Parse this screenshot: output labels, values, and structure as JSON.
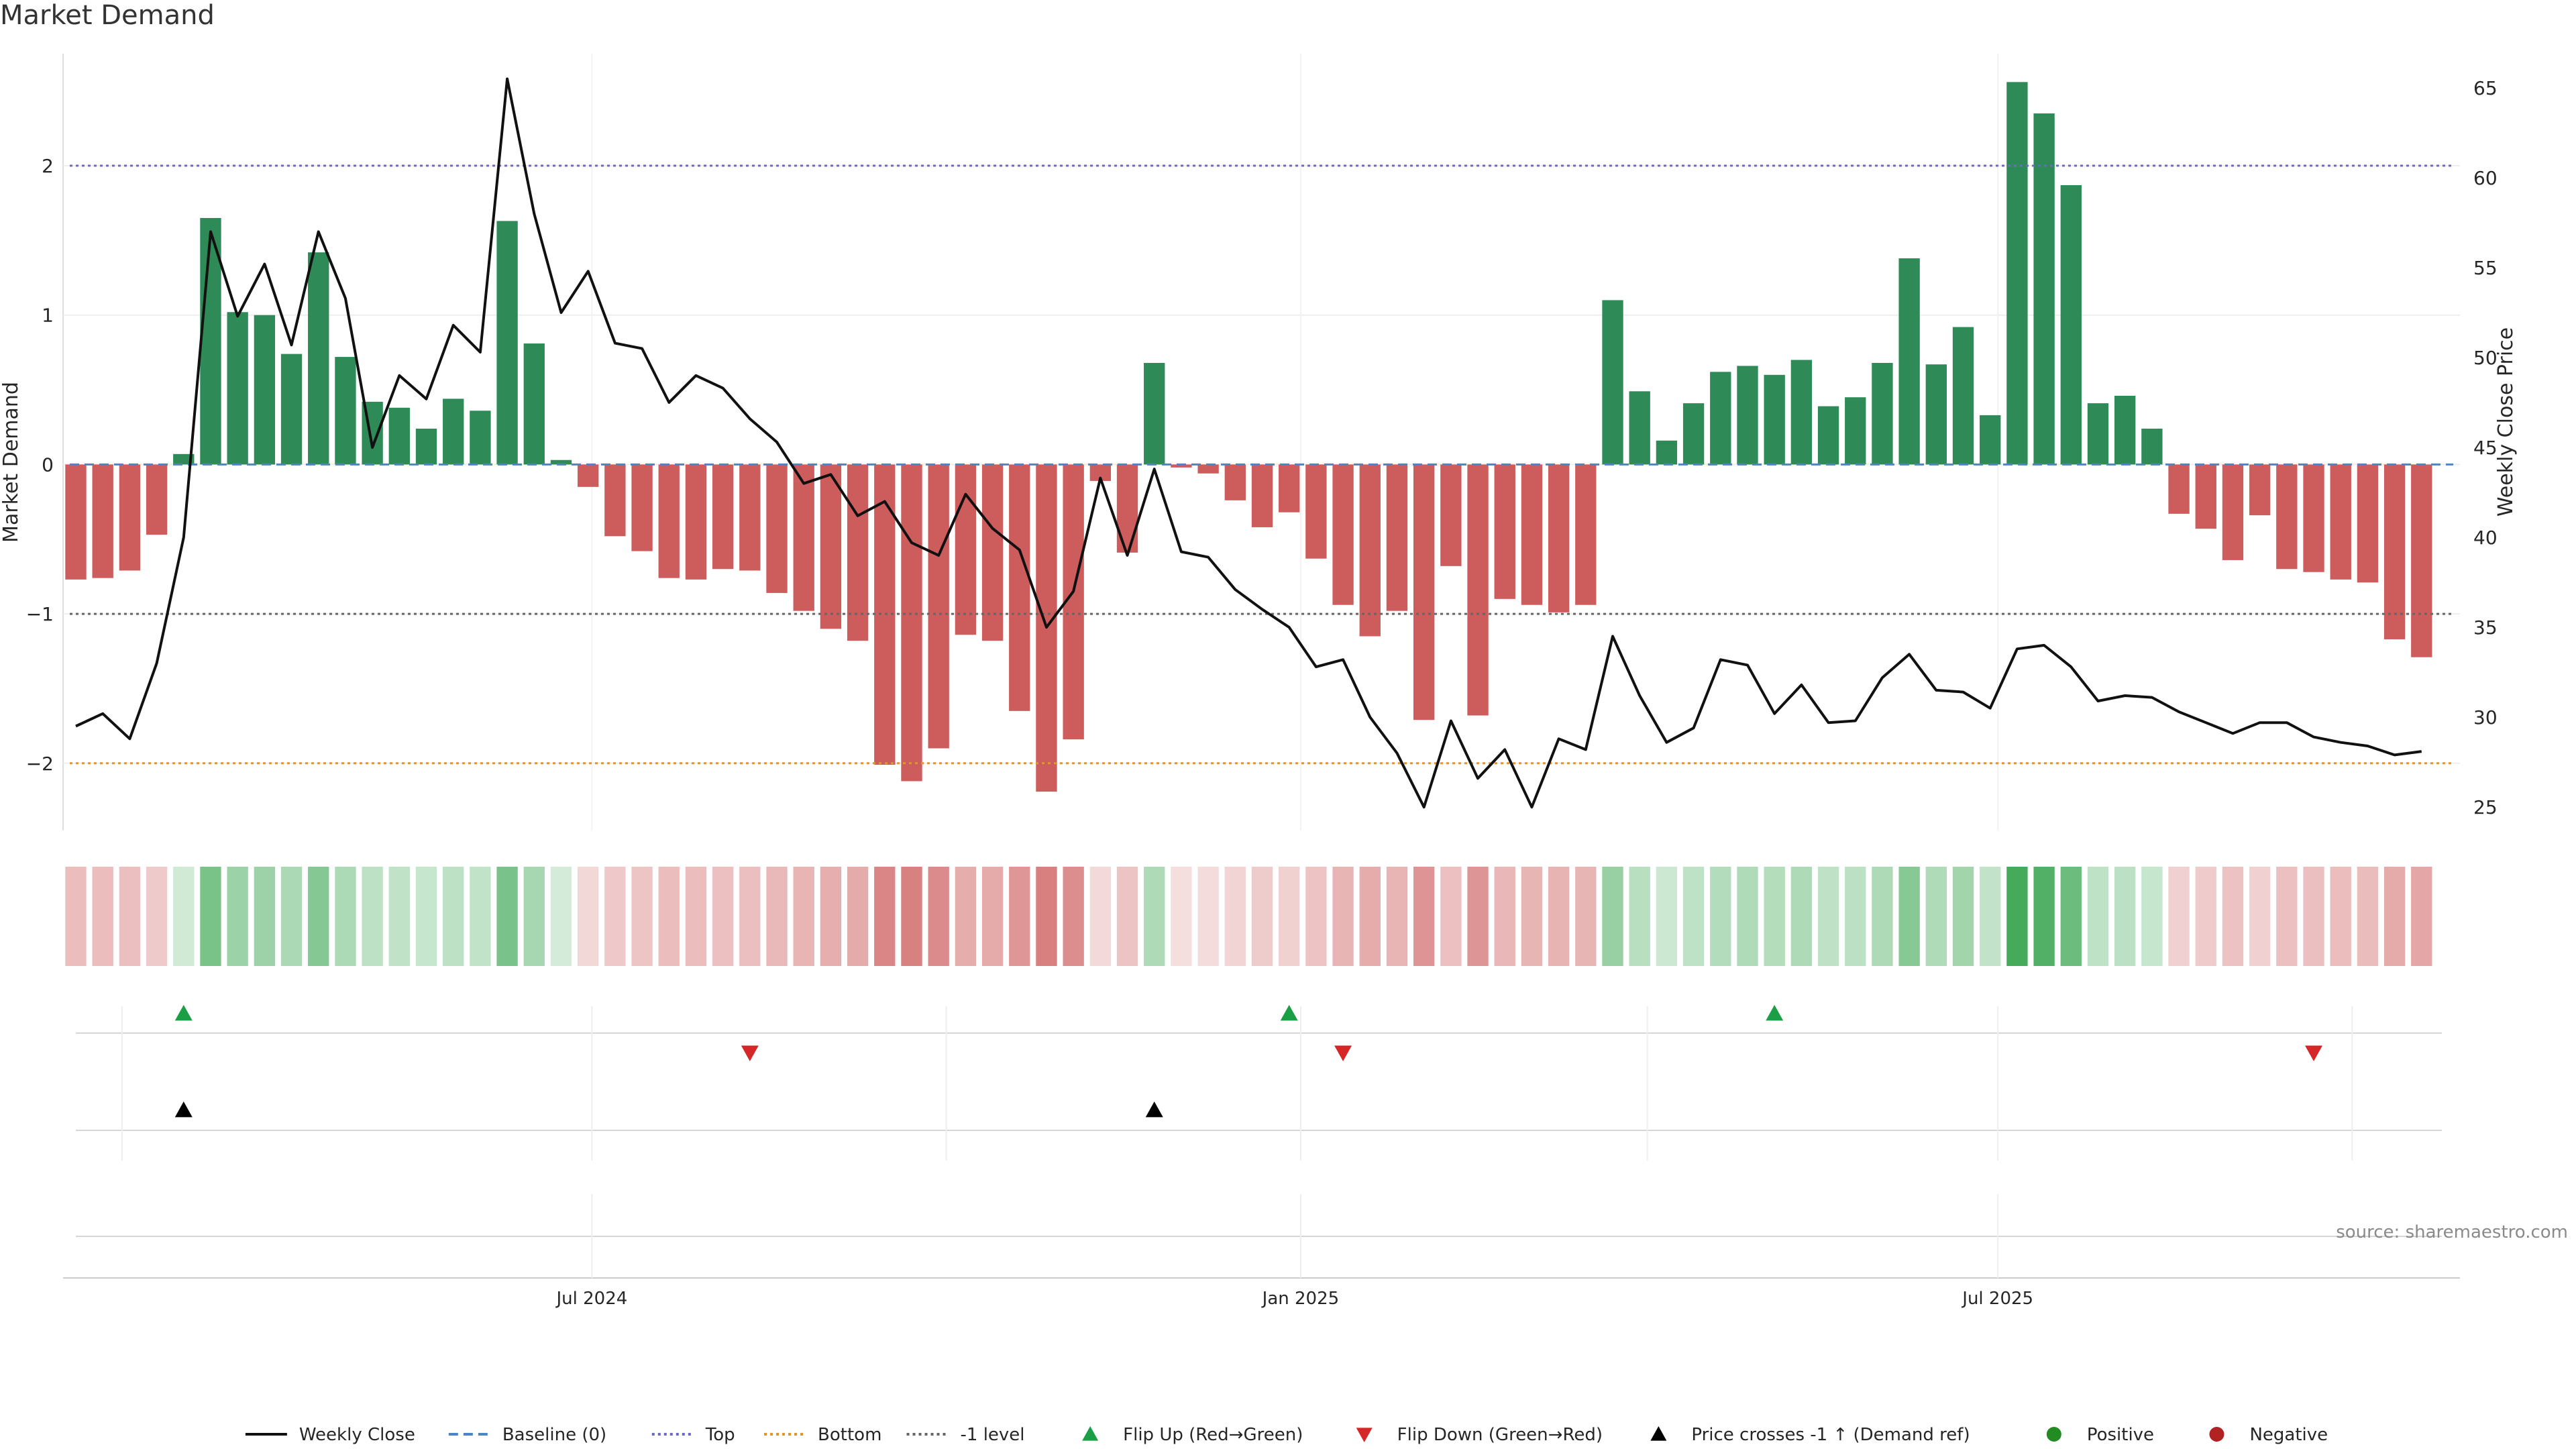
{
  "chart_data": {
    "type": "bar",
    "title": "Market Demand",
    "ylabel": "Market Demand",
    "y2label": "Weekly Close Price",
    "source": "source: sharemaestro.com",
    "ylim": [
      -2.45,
      2.75
    ],
    "y2lim": [
      23.7,
      66.9
    ],
    "yticks": [
      "2",
      "1",
      "0",
      "−1",
      "−2"
    ],
    "yticks_values": [
      2,
      1,
      0,
      -1,
      -2
    ],
    "y2ticks": [
      "65",
      "60",
      "55",
      "50",
      "45",
      "40",
      "35",
      "30",
      "25"
    ],
    "y2ticks_values": [
      65,
      60,
      55,
      50,
      45,
      40,
      35,
      30,
      25
    ],
    "xticks": [
      "Jul 2024",
      "Jan 2025",
      "Jul 2025"
    ],
    "xticks_dates": [
      "2024-07-01",
      "2025-01-01",
      "2025-07-01"
    ],
    "reference_lines": [
      {
        "name": "Top",
        "value": 2.0,
        "color": "#6b6bc6",
        "style": "dotted"
      },
      {
        "name": "-1 level",
        "value": -1.0,
        "color": "#666666",
        "style": "dotted"
      },
      {
        "name": "Bottom",
        "value": -2.0,
        "color": "#e0962f",
        "style": "dotted"
      },
      {
        "name": "Baseline (0)",
        "value": 0.0,
        "color": "#4c84c4",
        "style": "dashed"
      }
    ],
    "dates": [
      "2024-02-18",
      "2024-02-25",
      "2024-03-03",
      "2024-03-10",
      "2024-03-17",
      "2024-03-24",
      "2024-03-31",
      "2024-04-07",
      "2024-04-14",
      "2024-04-21",
      "2024-04-28",
      "2024-05-05",
      "2024-05-12",
      "2024-05-19",
      "2024-05-26",
      "2024-06-02",
      "2024-06-09",
      "2024-06-16",
      "2024-06-23",
      "2024-06-30",
      "2024-07-07",
      "2024-07-14",
      "2024-07-21",
      "2024-07-28",
      "2024-08-04",
      "2024-08-11",
      "2024-08-18",
      "2024-08-25",
      "2024-09-01",
      "2024-09-08",
      "2024-09-15",
      "2024-09-22",
      "2024-09-29",
      "2024-10-06",
      "2024-10-13",
      "2024-10-20",
      "2024-10-27",
      "2024-11-03",
      "2024-11-10",
      "2024-11-17",
      "2024-11-24",
      "2024-12-01",
      "2024-12-08",
      "2024-12-15",
      "2024-12-22",
      "2024-12-29",
      "2025-01-05",
      "2025-01-12",
      "2025-01-19",
      "2025-01-26",
      "2025-02-02",
      "2025-02-09",
      "2025-02-16",
      "2025-02-23",
      "2025-03-02",
      "2025-03-09",
      "2025-03-16",
      "2025-03-23",
      "2025-03-30",
      "2025-04-06",
      "2025-04-13",
      "2025-04-20",
      "2025-04-27",
      "2025-05-04",
      "2025-05-11",
      "2025-05-18",
      "2025-05-25",
      "2025-06-01",
      "2025-06-08",
      "2025-06-15",
      "2025-06-22",
      "2025-06-29",
      "2025-07-06",
      "2025-07-13",
      "2025-07-20",
      "2025-07-27",
      "2025-08-03",
      "2025-08-10",
      "2025-08-17",
      "2025-08-24",
      "2025-08-31",
      "2025-09-07",
      "2025-09-14",
      "2025-09-21",
      "2025-09-28",
      "2025-10-05",
      "2025-10-12",
      "2025-10-19",
      "2025-10-26"
    ],
    "demand": [
      -0.77,
      -0.76,
      -0.71,
      -0.47,
      0.07,
      1.65,
      1.02,
      1.0,
      0.74,
      1.42,
      0.72,
      0.42,
      0.38,
      0.24,
      0.44,
      0.36,
      1.63,
      0.81,
      0.03,
      -0.15,
      -0.48,
      -0.58,
      -0.76,
      -0.77,
      -0.7,
      -0.71,
      -0.86,
      -0.98,
      -1.1,
      -1.18,
      -2.01,
      -2.12,
      -1.9,
      -1.14,
      -1.18,
      -1.65,
      -2.19,
      -1.84,
      -0.11,
      -0.59,
      0.68,
      -0.02,
      -0.06,
      -0.24,
      -0.42,
      -0.32,
      -0.63,
      -0.94,
      -1.15,
      -0.98,
      -1.71,
      -0.68,
      -1.68,
      -0.9,
      -0.94,
      -0.99,
      -0.94,
      1.1,
      0.49,
      0.16,
      0.41,
      0.62,
      0.66,
      0.6,
      0.7,
      0.39,
      0.45,
      0.68,
      1.38,
      0.67,
      0.92,
      0.33,
      2.56,
      2.35,
      1.87,
      0.41,
      0.46,
      0.24,
      -0.33,
      -0.43,
      -0.64,
      -0.34,
      -0.7,
      -0.72,
      -0.77,
      -0.79,
      -1.17,
      -1.29
    ],
    "price": [
      29.5,
      30.2,
      28.8,
      33.0,
      40.0,
      57.0,
      52.3,
      55.2,
      50.7,
      57.0,
      53.3,
      45.0,
      49.0,
      47.7,
      51.8,
      50.3,
      65.5,
      58.0,
      52.5,
      54.8,
      50.8,
      50.5,
      47.5,
      49.0,
      48.3,
      46.6,
      45.3,
      43.0,
      43.5,
      41.2,
      42.0,
      39.7,
      39.0,
      42.4,
      40.5,
      39.3,
      35.0,
      37.0,
      43.3,
      39.0,
      43.8,
      39.2,
      38.9,
      37.1,
      36.0,
      35.0,
      32.8,
      33.2,
      30.0,
      28.0,
      25.0,
      29.8,
      26.6,
      28.2,
      25.0,
      28.8,
      28.2,
      34.5,
      31.2,
      28.6,
      29.4,
      33.2,
      32.9,
      30.2,
      31.8,
      29.7,
      29.8,
      32.2,
      33.5,
      31.5,
      31.4,
      30.5,
      33.8,
      34.0,
      32.8,
      30.9,
      31.2,
      31.1,
      30.3,
      29.7,
      29.1,
      29.7,
      29.7,
      28.9,
      28.6,
      28.4,
      27.9,
      28.1
    ],
    "flip_up_dates": [
      "2024-03-17",
      "2024-12-29",
      "2025-05-04"
    ],
    "flip_down_dates": [
      "2024-08-11",
      "2025-01-12",
      "2025-09-21"
    ],
    "price_cross_dates": [
      "2024-03-17",
      "2024-11-24"
    ],
    "colors": {
      "positive_bar": "#2e8b57",
      "negative_bar": "#cd5c5c",
      "price_line": "#111111",
      "flip_up": "#1a9e46",
      "flip_down": "#d62728",
      "cross": "#000000",
      "positive_dot": "#228b22",
      "negative_dot": "#b22222"
    },
    "legend": {
      "placement": "bottom-center",
      "items": [
        {
          "label": "Weekly Close",
          "symbol": "line",
          "color": "#111111"
        },
        {
          "label": "Baseline (0)",
          "symbol": "dashed",
          "color": "#4c84c4"
        },
        {
          "label": "Top",
          "symbol": "dotted",
          "color": "#6b6bc6"
        },
        {
          "label": "Bottom",
          "symbol": "dotted",
          "color": "#e0962f"
        },
        {
          "label": "-1 level",
          "symbol": "dotted",
          "color": "#666666"
        },
        {
          "label": "Flip Up (Red→Green)",
          "symbol": "triangle-up",
          "color": "#1a9e46"
        },
        {
          "label": "Flip Down (Green→Red)",
          "symbol": "triangle-down",
          "color": "#d62728"
        },
        {
          "label": "Price crosses -1 ↑ (Demand ref)",
          "symbol": "triangle-up",
          "color": "#000000"
        },
        {
          "label": "Positive",
          "symbol": "dot",
          "color": "#228b22"
        },
        {
          "label": "Negative",
          "symbol": "dot",
          "color": "#b22222"
        }
      ]
    }
  }
}
